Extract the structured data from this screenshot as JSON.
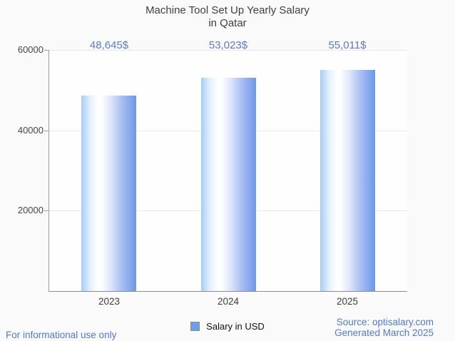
{
  "title": {
    "line1": "Machine Tool Set Up Yearly Salary",
    "line2": "in Qatar"
  },
  "chart_data": {
    "type": "bar",
    "title": "Machine Tool Set Up Yearly Salary in Qatar",
    "categories": [
      "2023",
      "2024",
      "2025"
    ],
    "series": [
      {
        "name": "Salary in USD",
        "values": [
          48645,
          53023,
          55011
        ]
      }
    ],
    "value_labels": [
      "48,645$",
      "53,023$",
      "55,011$"
    ],
    "xlabel": "",
    "ylabel": "",
    "ylim": [
      0,
      60000
    ],
    "yticks": [
      20000,
      40000,
      60000
    ],
    "ytick_labels": [
      "20000",
      "40000",
      "60000"
    ],
    "grid": true,
    "legend_position": "bottom-center"
  },
  "legend": {
    "label": "Salary in USD",
    "swatch_color": "#6d9eeb",
    "swatch_border": "#8b8b8b"
  },
  "footer": {
    "disclaimer": "For informational use only",
    "source": "Source: optisalary.com",
    "generated": "Generated March 2025"
  },
  "colors": {
    "annotation": "#5a7bce",
    "footer_link": "#4e7ad5",
    "bar_left": "#a7ccf8",
    "bar_mid": "#ffffff",
    "bar_right": "#6d97e9",
    "grid_line": "#e8e8e8",
    "axis_line": "#9e9e9e"
  }
}
